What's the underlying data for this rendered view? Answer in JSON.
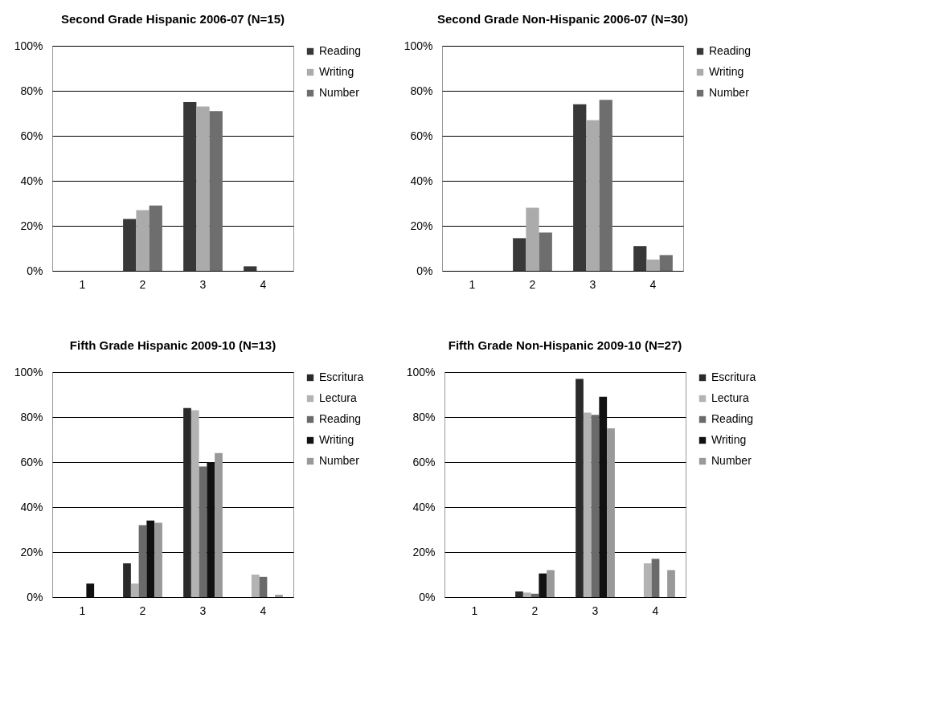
{
  "chart_data": [
    {
      "type": "bar",
      "title": "Second Grade Hispanic 2006-07 (N=15)",
      "categories": [
        "1",
        "2",
        "3",
        "4"
      ],
      "ylim": [
        0,
        100
      ],
      "yticks": [
        {
          "value": 0,
          "label": "0%"
        },
        {
          "value": 20,
          "label": "20%"
        },
        {
          "value": 40,
          "label": "40%"
        },
        {
          "value": 60,
          "label": "60%"
        },
        {
          "value": 80,
          "label": "80%"
        },
        {
          "value": 100,
          "label": "100%"
        }
      ],
      "grid": "y",
      "legend": "right",
      "series": [
        {
          "name": "Reading",
          "color": "#383838",
          "values": [
            0,
            23,
            75,
            2
          ]
        },
        {
          "name": "Writing",
          "color": "#ababab",
          "values": [
            0,
            27,
            73,
            0
          ]
        },
        {
          "name": "Number",
          "color": "#6e6e6e",
          "values": [
            0,
            29,
            71,
            0
          ]
        }
      ]
    },
    {
      "type": "bar",
      "title": "Second Grade Non-Hispanic 2006-07 (N=30)",
      "categories": [
        "1",
        "2",
        "3",
        "4"
      ],
      "ylim": [
        0,
        100
      ],
      "yticks": [
        {
          "value": 0,
          "label": "0%"
        },
        {
          "value": 20,
          "label": "20%"
        },
        {
          "value": 40,
          "label": "40%"
        },
        {
          "value": 60,
          "label": "60%"
        },
        {
          "value": 80,
          "label": "80%"
        },
        {
          "value": 100,
          "label": "100%"
        }
      ],
      "grid": "y",
      "legend": "right",
      "series": [
        {
          "name": "Reading",
          "color": "#383838",
          "values": [
            0,
            14.5,
            74,
            11
          ]
        },
        {
          "name": "Writing",
          "color": "#ababab",
          "values": [
            0,
            28,
            67,
            5
          ]
        },
        {
          "name": "Number",
          "color": "#6e6e6e",
          "values": [
            0,
            17,
            76,
            7
          ]
        }
      ]
    },
    {
      "type": "bar",
      "title": "Fifth Grade Hispanic 2009-10 (N=13)",
      "categories": [
        "1",
        "2",
        "3",
        "4"
      ],
      "ylim": [
        0,
        100
      ],
      "yticks": [
        {
          "value": 0,
          "label": "0%"
        },
        {
          "value": 20,
          "label": "20%"
        },
        {
          "value": 40,
          "label": "40%"
        },
        {
          "value": 60,
          "label": "60%"
        },
        {
          "value": 80,
          "label": "80%"
        },
        {
          "value": 100,
          "label": "100%"
        }
      ],
      "grid": "y",
      "legend": "right",
      "series": [
        {
          "name": "Escritura",
          "color": "#2a2a2a",
          "values": [
            0,
            15,
            84,
            0
          ]
        },
        {
          "name": "Lectura",
          "color": "#b3b3b3",
          "values": [
            0,
            6,
            83,
            10
          ]
        },
        {
          "name": "Reading",
          "color": "#6a6a6a",
          "values": [
            0,
            32,
            58,
            9
          ]
        },
        {
          "name": "Writing",
          "color": "#111111",
          "values": [
            6,
            34,
            60,
            0
          ]
        },
        {
          "name": "Number",
          "color": "#999999",
          "values": [
            0,
            33,
            64,
            1
          ]
        }
      ]
    },
    {
      "type": "bar",
      "title": "Fifth Grade Non-Hispanic 2009-10 (N=27)",
      "categories": [
        "1",
        "2",
        "3",
        "4"
      ],
      "ylim": [
        0,
        100
      ],
      "yticks": [
        {
          "value": 0,
          "label": "0%"
        },
        {
          "value": 20,
          "label": "20%"
        },
        {
          "value": 40,
          "label": "40%"
        },
        {
          "value": 60,
          "label": "60%"
        },
        {
          "value": 80,
          "label": "80%"
        },
        {
          "value": 100,
          "label": "100%"
        }
      ],
      "grid": "y",
      "legend": "right",
      "series": [
        {
          "name": "Escritura",
          "color": "#2a2a2a",
          "values": [
            0,
            2.5,
            97,
            0
          ]
        },
        {
          "name": "Lectura",
          "color": "#b3b3b3",
          "values": [
            0,
            2,
            82,
            15
          ]
        },
        {
          "name": "Reading",
          "color": "#6a6a6a",
          "values": [
            0,
            1.5,
            81,
            17
          ]
        },
        {
          "name": "Writing",
          "color": "#111111",
          "values": [
            0,
            10.5,
            89,
            0
          ]
        },
        {
          "name": "Number",
          "color": "#999999",
          "values": [
            0,
            12,
            75,
            12
          ]
        }
      ]
    }
  ]
}
